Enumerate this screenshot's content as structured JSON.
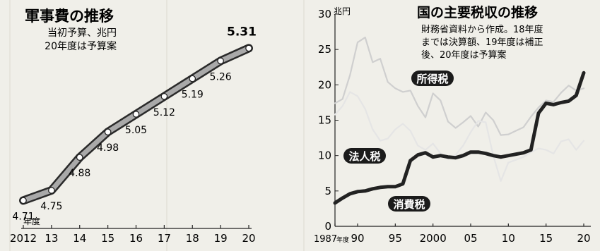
{
  "chart_data": [
    {
      "type": "line",
      "title": "軍事費の推移",
      "subtitle_lines": [
        "当初予算、兆円",
        "20年度は予算案"
      ],
      "xlabel": "年度",
      "x_ticks": [
        "2012",
        "13",
        "14",
        "15",
        "16",
        "17",
        "18",
        "19",
        "20"
      ],
      "series": [
        {
          "x": [
            2012,
            2013,
            2014,
            2015,
            2016,
            2017,
            2018,
            2019,
            2020
          ],
          "values": [
            4.71,
            4.75,
            4.88,
            4.98,
            5.05,
            5.12,
            5.19,
            5.26,
            5.31
          ]
        }
      ],
      "data_labels": [
        "4.71",
        "4.75",
        "4.88",
        "4.98",
        "5.05",
        "5.12",
        "5.19",
        "5.26",
        "5.31"
      ],
      "xlim": [
        2012,
        2020
      ],
      "ylim": [
        4.6,
        5.4
      ],
      "grid": false
    },
    {
      "type": "line",
      "title": "国の主要税収の推移",
      "subtitle_lines": [
        "財務省資料から作成。18年度",
        "までは決算額、19年度は補正",
        "後、20年度は予算案"
      ],
      "yunit": "兆円",
      "ylim": [
        0,
        30
      ],
      "y_ticks": [
        "0",
        "5",
        "10",
        "15",
        "20",
        "25",
        "30"
      ],
      "xlim": [
        1987,
        2020
      ],
      "x_ticks": [
        {
          "value": 1987,
          "label": "1987"
        },
        {
          "value": 1990,
          "label": "90"
        },
        {
          "value": 1995,
          "label": "95"
        },
        {
          "value": 2000,
          "label": "2000"
        },
        {
          "value": 2005,
          "label": "05"
        },
        {
          "value": 2010,
          "label": "10"
        },
        {
          "value": 2015,
          "label": "15"
        },
        {
          "value": 2020,
          "label": "20"
        }
      ],
      "x_tick_suffix": "年度",
      "series": [
        {
          "name": "所得税",
          "color": "#cfcfcf",
          "x": [
            1987,
            1988,
            1989,
            1990,
            1991,
            1992,
            1993,
            1994,
            1995,
            1996,
            1997,
            1998,
            1999,
            2000,
            2001,
            2002,
            2003,
            2004,
            2005,
            2006,
            2007,
            2008,
            2009,
            2010,
            2011,
            2012,
            2013,
            2014,
            2015,
            2016,
            2017,
            2018,
            2019,
            2020
          ],
          "values": [
            17.4,
            18.0,
            21.4,
            26.0,
            26.7,
            23.2,
            23.7,
            20.4,
            19.5,
            19.0,
            19.2,
            17.0,
            15.4,
            18.8,
            17.8,
            14.8,
            13.9,
            14.7,
            15.6,
            14.1,
            16.1,
            15.0,
            12.9,
            13.0,
            13.5,
            14.0,
            15.5,
            16.8,
            17.8,
            17.6,
            18.9,
            19.9,
            19.2,
            19.5
          ]
        },
        {
          "name": "法人税",
          "color": "#e5e5e5",
          "x": [
            1987,
            1988,
            1989,
            1990,
            1991,
            1992,
            1993,
            1994,
            1995,
            1996,
            1997,
            1998,
            1999,
            2000,
            2001,
            2002,
            2003,
            2004,
            2005,
            2006,
            2007,
            2008,
            2009,
            2010,
            2011,
            2012,
            2013,
            2014,
            2015,
            2016,
            2017,
            2018,
            2019,
            2020
          ],
          "values": [
            15.8,
            17.0,
            19.0,
            18.4,
            16.6,
            13.7,
            12.1,
            12.4,
            13.7,
            14.5,
            13.5,
            11.4,
            10.8,
            11.7,
            10.3,
            9.5,
            10.1,
            11.4,
            13.3,
            14.9,
            14.7,
            10.0,
            6.4,
            9.0,
            9.4,
            9.8,
            10.5,
            11.0,
            10.8,
            10.3,
            12.0,
            12.3,
            10.8,
            12.1
          ]
        },
        {
          "name": "消費税",
          "color": "#222222",
          "x": [
            1987,
            1988,
            1989,
            1990,
            1991,
            1992,
            1993,
            1994,
            1995,
            1996,
            1997,
            1998,
            1999,
            2000,
            2001,
            2002,
            2003,
            2004,
            2005,
            2006,
            2007,
            2008,
            2009,
            2010,
            2011,
            2012,
            2013,
            2014,
            2015,
            2016,
            2017,
            2018,
            2019,
            2020
          ],
          "values": [
            3.3,
            4.0,
            4.6,
            4.9,
            5.0,
            5.3,
            5.5,
            5.6,
            5.6,
            6.0,
            9.3,
            10.1,
            10.4,
            9.8,
            10.0,
            9.8,
            9.7,
            10.0,
            10.5,
            10.5,
            10.3,
            10.0,
            9.8,
            10.0,
            10.2,
            10.4,
            10.8,
            16.0,
            17.4,
            17.2,
            17.5,
            17.7,
            18.5,
            21.7
          ]
        }
      ],
      "grid": false
    }
  ]
}
